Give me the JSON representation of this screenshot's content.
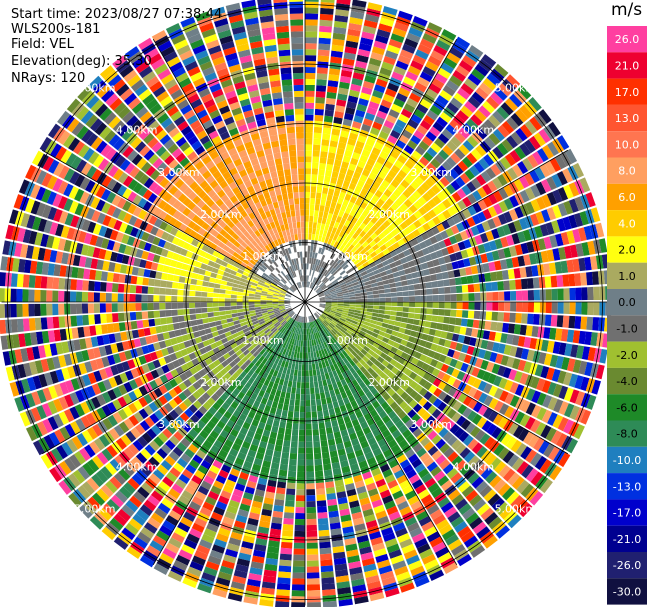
{
  "header": {
    "start_time": "Start time: 2023/08/27 07:38:44",
    "instrument": "WLS200s-181",
    "field": "Field: VEL",
    "elevation": "Elevation(deg): 35.30",
    "nrays": "NRays: 120"
  },
  "colorbar": {
    "unit": "m/s",
    "levels": [
      {
        "label": "26.0",
        "color": "#ff3fa0"
      },
      {
        "label": "21.0",
        "color": "#ee0030"
      },
      {
        "label": "17.0",
        "color": "#ff3000"
      },
      {
        "label": "13.0",
        "color": "#ff5530"
      },
      {
        "label": "10.0",
        "color": "#ff7550"
      },
      {
        "label": "8.0",
        "color": "#ff9f60"
      },
      {
        "label": "6.0",
        "color": "#ffa000"
      },
      {
        "label": "4.0",
        "color": "#ffcc00"
      },
      {
        "label": "2.0",
        "color": "#ffff10"
      },
      {
        "label": "1.0",
        "color": "#aaaa60"
      },
      {
        "label": "0.0",
        "color": "#6f7f88"
      },
      {
        "label": "-1.0",
        "color": "#707070"
      },
      {
        "label": "-2.0",
        "color": "#a0c030"
      },
      {
        "label": "-4.0",
        "color": "#6a8a30"
      },
      {
        "label": "-6.0",
        "color": "#1e8a28"
      },
      {
        "label": "-8.0",
        "color": "#2e8b57"
      },
      {
        "label": "-10.0",
        "color": "#1f7fbf"
      },
      {
        "label": "-13.0",
        "color": "#0030e0"
      },
      {
        "label": "-17.0",
        "color": "#0000cc"
      },
      {
        "label": "-21.0",
        "color": "#000090"
      },
      {
        "label": "-26.0",
        "color": "#202070"
      },
      {
        "label": "-30.0",
        "color": "#101040"
      }
    ]
  },
  "chart_data": {
    "type": "heatmap",
    "title": "",
    "field": "VEL",
    "unit": "m/s",
    "elevation_deg": 35.3,
    "nrays": 120,
    "range_rings_km": [
      1.0,
      2.0,
      3.0,
      4.0,
      5.0
    ],
    "range_ring_labels": [
      "1.00km",
      "2.00km",
      "3.00km",
      "4.00km",
      "5.00km"
    ],
    "sectors": [
      {
        "azimuth_deg": [
          300,
          360
        ],
        "range_km": [
          1.0,
          3.0
        ],
        "velocity_ms": 8.0
      },
      {
        "azimuth_deg": [
          0,
          60
        ],
        "range_km": [
          1.0,
          3.0
        ],
        "velocity_ms": 4.0
      },
      {
        "azimuth_deg": [
          60,
          90
        ],
        "range_km": [
          0.3,
          2.5
        ],
        "velocity_ms": 0.0
      },
      {
        "azimuth_deg": [
          90,
          140
        ],
        "range_km": [
          0.3,
          2.5
        ],
        "velocity_ms": -2.0
      },
      {
        "azimuth_deg": [
          140,
          220
        ],
        "range_km": [
          0.3,
          3.0
        ],
        "velocity_ms": -6.0
      },
      {
        "azimuth_deg": [
          220,
          270
        ],
        "range_km": [
          0.3,
          2.5
        ],
        "velocity_ms": -1.0
      },
      {
        "azimuth_deg": [
          270,
          300
        ],
        "range_km": [
          0.3,
          2.5
        ],
        "velocity_ms": 2.0
      }
    ],
    "noise_beyond_km": 3.0
  }
}
